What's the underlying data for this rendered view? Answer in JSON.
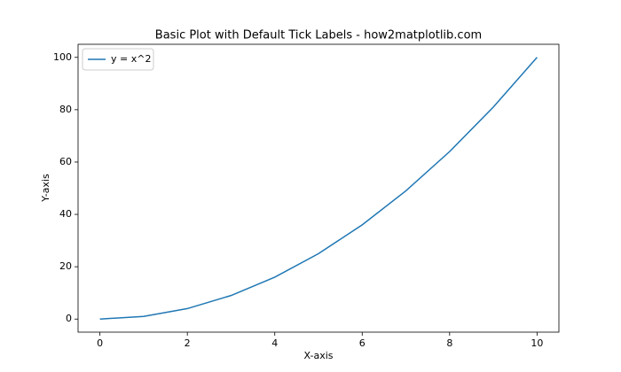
{
  "chart_data": {
    "type": "line",
    "title": "Basic Plot with Default Tick Labels - how2matplotlib.com",
    "x_label": "X-axis",
    "y_label": "Y-axis",
    "x": [
      0,
      1,
      2,
      3,
      4,
      5,
      6,
      7,
      8,
      9,
      10
    ],
    "series": [
      {
        "name": "y = x^2",
        "color": "#1f77b4",
        "values": [
          0,
          1,
          4,
          9,
          16,
          25,
          36,
          49,
          64,
          81,
          100
        ]
      }
    ],
    "xlim": [
      -0.5,
      10.5
    ],
    "ylim": [
      -5,
      105
    ],
    "xticks": [
      0,
      2,
      4,
      6,
      8,
      10
    ],
    "yticks": [
      0,
      20,
      40,
      60,
      80,
      100
    ],
    "grid": false,
    "legend": "upper left"
  }
}
